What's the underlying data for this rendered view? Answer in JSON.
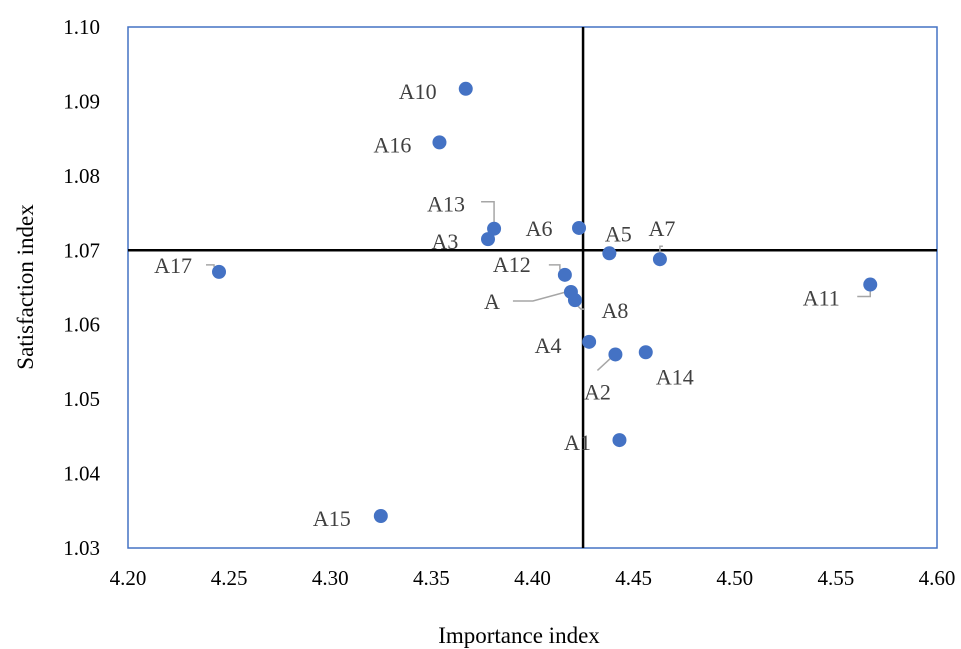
{
  "chart_data": {
    "type": "scatter",
    "title": "",
    "xlabel": "Importance index",
    "ylabel": "Satisfaction index",
    "xlim": [
      4.2,
      4.6
    ],
    "ylim": [
      1.03,
      1.1
    ],
    "x_ticks": [
      "4.20",
      "4.25",
      "4.30",
      "4.35",
      "4.40",
      "4.45",
      "4.50",
      "4.55",
      "4.60"
    ],
    "y_ticks": [
      "1.03",
      "1.04",
      "1.05",
      "1.06",
      "1.07",
      "1.08",
      "1.09",
      "1.10"
    ],
    "reference_lines": {
      "x": 4.425,
      "y": 1.07
    },
    "grid": false,
    "legend": "none",
    "colors": {
      "points": "#4472C4",
      "border": "#4472C4",
      "reference": "#000000",
      "leader": "#A6A6A6"
    },
    "points": [
      {
        "label": "A1",
        "x": 4.443,
        "y": 1.0445
      },
      {
        "label": "A2",
        "x": 4.441,
        "y": 1.056
      },
      {
        "label": "A3",
        "x": 4.378,
        "y": 1.0715
      },
      {
        "label": "A4",
        "x": 4.428,
        "y": 1.0577
      },
      {
        "label": "A5",
        "x": 4.438,
        "y": 1.0696
      },
      {
        "label": "A6",
        "x": 4.423,
        "y": 1.073
      },
      {
        "label": "A7",
        "x": 4.463,
        "y": 1.0688
      },
      {
        "label": "A8",
        "x": 4.421,
        "y": 1.0633
      },
      {
        "label": "A10",
        "x": 4.367,
        "y": 1.0917
      },
      {
        "label": "A11",
        "x": 4.567,
        "y": 1.0654
      },
      {
        "label": "A12",
        "x": 4.416,
        "y": 1.0667
      },
      {
        "label": "A13",
        "x": 4.381,
        "y": 1.0729
      },
      {
        "label": "A14",
        "x": 4.456,
        "y": 1.0563
      },
      {
        "label": "A15",
        "x": 4.325,
        "y": 1.0343
      },
      {
        "label": "A16",
        "x": 4.354,
        "y": 1.0845
      },
      {
        "label": "A17",
        "x": 4.245,
        "y": 1.0671
      },
      {
        "label": "A",
        "x": 4.419,
        "y": 1.0644
      }
    ]
  }
}
